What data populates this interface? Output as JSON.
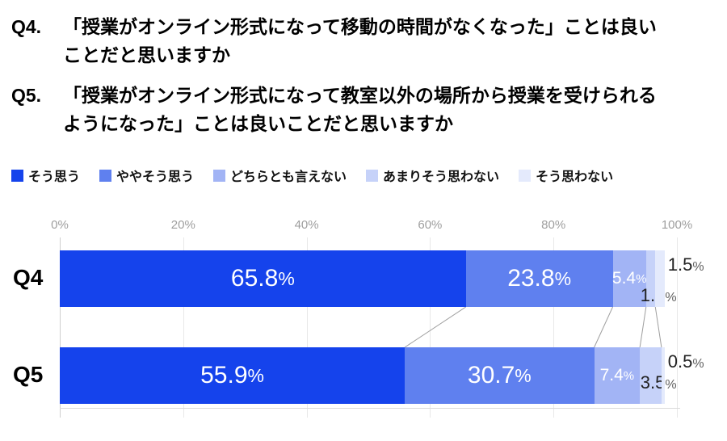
{
  "questions": [
    {
      "prefix": "Q4.",
      "text": "「授業がオンライン形式になって移動の時間がなくなった」ことは良いことだと思いますか"
    },
    {
      "prefix": "Q5.",
      "text": "「授業がオンライン形式になって教室以外の場所から授業を受けられるようになった」ことは良いことだと思いますか"
    }
  ],
  "legend": {
    "items": [
      {
        "label": "そう思う",
        "color": "#1543ec"
      },
      {
        "label": "ややそう思う",
        "color": "#5f80ef"
      },
      {
        "label": "どちらとも言えない",
        "color": "#a2b4f5"
      },
      {
        "label": "あまりそう思わない",
        "color": "#c6d2f9"
      },
      {
        "label": "そう思わない",
        "color": "#e4eafc"
      }
    ]
  },
  "chart_data": {
    "type": "bar",
    "stacked": true,
    "orientation": "horizontal",
    "categories": [
      "Q4",
      "Q5"
    ],
    "series": [
      {
        "name": "そう思う",
        "color": "#1543ec",
        "values": [
          65.8,
          55.9
        ]
      },
      {
        "name": "ややそう思う",
        "color": "#5f80ef",
        "values": [
          23.8,
          30.7
        ]
      },
      {
        "name": "どちらとも言えない",
        "color": "#a2b4f5",
        "values": [
          5.4,
          7.4
        ]
      },
      {
        "name": "あまりそう思わない",
        "color": "#c6d2f9",
        "values": [
          1.5,
          3.5
        ]
      },
      {
        "name": "そう思わない",
        "color": "#e4eafc",
        "values": [
          1.5,
          0.5
        ]
      }
    ],
    "data_labels": {
      "Q4": [
        "65.8%",
        "23.8%",
        "5.4%",
        "1.5%",
        "1.5%"
      ],
      "Q5": [
        "55.9%",
        "30.7%",
        "7.4%",
        "3.5%",
        "0.5%"
      ]
    },
    "x_ticks": [
      {
        "value": 0,
        "label": "0%"
      },
      {
        "value": 20,
        "label": "20%"
      },
      {
        "value": 40,
        "label": "40%"
      },
      {
        "value": 60,
        "label": "60%"
      },
      {
        "value": 80,
        "label": "80%"
      },
      {
        "value": 100,
        "label": "100%"
      }
    ],
    "xlim": [
      0,
      100
    ],
    "grid": true,
    "legend_position": "top",
    "series_lines": true,
    "colors": {
      "tick_text": "#9e9e9e",
      "gridline": "#e8e8e8",
      "series_line": "#9e9e9e",
      "inside_label_text": "#ffffff",
      "outside_label_text": "#212121"
    }
  }
}
